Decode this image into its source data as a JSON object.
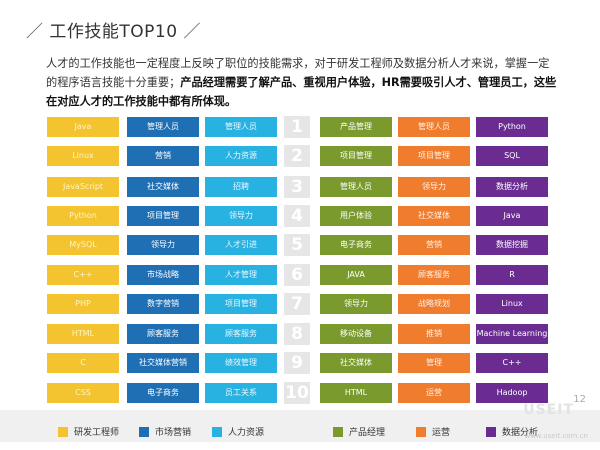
{
  "title": {
    "slash_left": "／",
    "text": "工作技能TOP10",
    "slash_right": "／"
  },
  "intro": {
    "normal": "人才的工作技能也一定程度上反映了职位的技能需求，对于研发工程师及数据分析人才来说，掌握一定的程序语言技能十分重要；",
    "bold": "产品经理需要了解产品、重视用户体验，HR需要吸引人才、管理员工，这些在对应人才的工作技能中都有所体现。"
  },
  "columns": [
    {
      "key": "rd",
      "color": "#f4c430",
      "cells": [
        "Java",
        "Linux",
        "JavaScript",
        "Python",
        "MySQL",
        "C++",
        "PHP",
        "HTML",
        "C",
        "CSS"
      ]
    },
    {
      "key": "marketing",
      "color": "#1f6fb5",
      "cells": [
        "管理人员",
        "营销",
        "社交媒体",
        "项目管理",
        "领导力",
        "市场战略",
        "数字营销",
        "顾客服务",
        "社交媒体营销",
        "电子商务"
      ]
    },
    {
      "key": "hr",
      "color": "#28b2e2",
      "cells": [
        "管理人员",
        "人力资源",
        "招聘",
        "领导力",
        "人才引进",
        "人才管理",
        "项目管理",
        "顾客服务",
        "绩效管理",
        "员工关系"
      ]
    },
    {
      "key": "ranks",
      "cells": [
        "1",
        "2",
        "3",
        "4",
        "5",
        "6",
        "7",
        "8",
        "9",
        "10"
      ]
    },
    {
      "key": "pm",
      "color": "#7a9a2e",
      "cells": [
        "产品管理",
        "项目管理",
        "管理人员",
        "用户体验",
        "电子商务",
        "JAVA",
        "领导力",
        "移动设备",
        "社交媒体",
        "HTML"
      ]
    },
    {
      "key": "ops",
      "color": "#ef7d2d",
      "cells": [
        "管理人员",
        "项目管理",
        "领导力",
        "社交媒体",
        "营销",
        "顾客服务",
        "战略规划",
        "推销",
        "管理",
        "运营"
      ]
    },
    {
      "key": "data",
      "color": "#6a2c91",
      "cells": [
        "Python",
        "SQL",
        "数据分析",
        "Java",
        "数据挖掘",
        "R",
        "Linux",
        "Machine Learning",
        "C++",
        "Hadoop"
      ]
    }
  ],
  "legend": [
    {
      "label": "研发工程师",
      "color": "#f4c430"
    },
    {
      "label": "市场营销",
      "color": "#1f6fb5"
    },
    {
      "label": "人力资源",
      "color": "#28b2e2"
    },
    {
      "label": "产品经理",
      "color": "#7a9a2e"
    },
    {
      "label": "运营",
      "color": "#ef7d2d"
    },
    {
      "label": "数据分析",
      "color": "#6a2c91"
    }
  ],
  "page_number": "12",
  "logo_text": "USEIT",
  "watermark": "www.useit.com.cn"
}
